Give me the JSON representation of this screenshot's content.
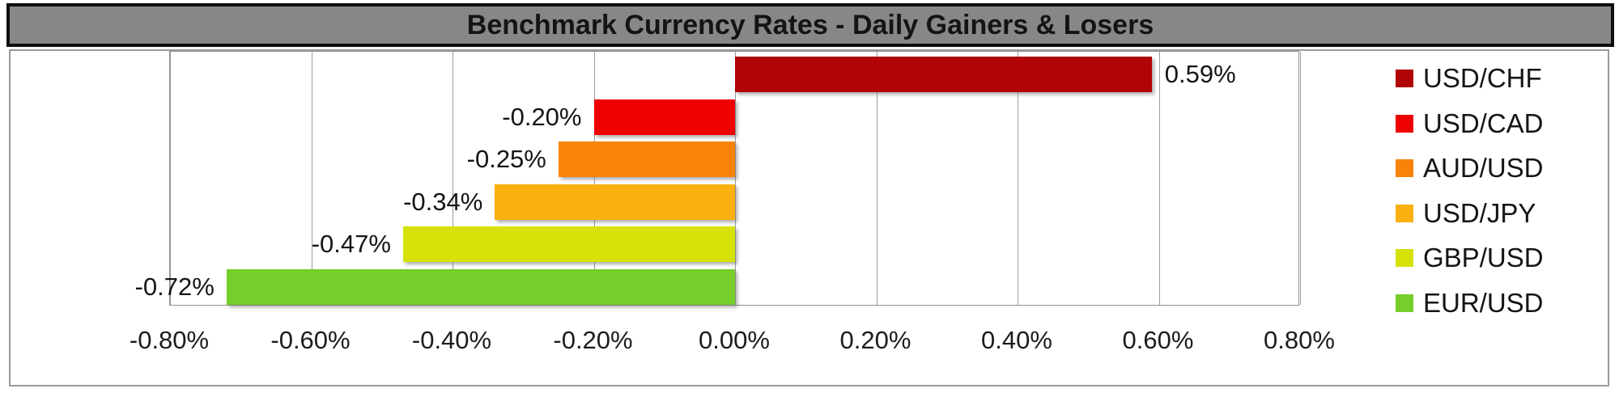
{
  "title": "Benchmark Currency Rates - Daily Gainers & Losers",
  "colors": {
    "title_bar_bg": "#878787",
    "title_bar_border": "#0e0e0e",
    "title_text": "#141414",
    "canvas_border": "#9a9a9a",
    "plot_border": "#8f8f8f",
    "gridline": "#9c9c9c",
    "label_text": "#151515"
  },
  "chart_data": {
    "type": "bar",
    "orientation": "horizontal",
    "title": "Benchmark Currency Rates - Daily Gainers & Losers",
    "categories": [
      "USD/CHF",
      "USD/CAD",
      "AUD/USD",
      "USD/JPY",
      "GBP/USD",
      "EUR/USD"
    ],
    "values": [
      0.59,
      -0.2,
      -0.25,
      -0.34,
      -0.47,
      -0.72
    ],
    "value_labels": [
      "0.59%",
      "-0.20%",
      "-0.25%",
      "-0.34%",
      "-0.47%",
      "-0.72%"
    ],
    "bar_colors": [
      "#b10505",
      "#ee0101",
      "#f8820a",
      "#fab110",
      "#d6e207",
      "#75ce2b"
    ],
    "xlabel": "",
    "ylabel": "",
    "xlim": [
      -0.8,
      0.8
    ],
    "x_tick_values": [
      -0.8,
      -0.6,
      -0.4,
      -0.2,
      0,
      0.2,
      0.4,
      0.6,
      0.8
    ],
    "x_tick_labels": [
      "-0.80%",
      "-0.60%",
      "-0.40%",
      "-0.20%",
      "0.00%",
      "0.20%",
      "0.40%",
      "0.60%",
      "0.80%"
    ],
    "grid": true,
    "legend": [
      "USD/CHF",
      "USD/CAD",
      "AUD/USD",
      "USD/JPY",
      "GBP/USD",
      "EUR/USD"
    ],
    "legend_position": "right"
  }
}
